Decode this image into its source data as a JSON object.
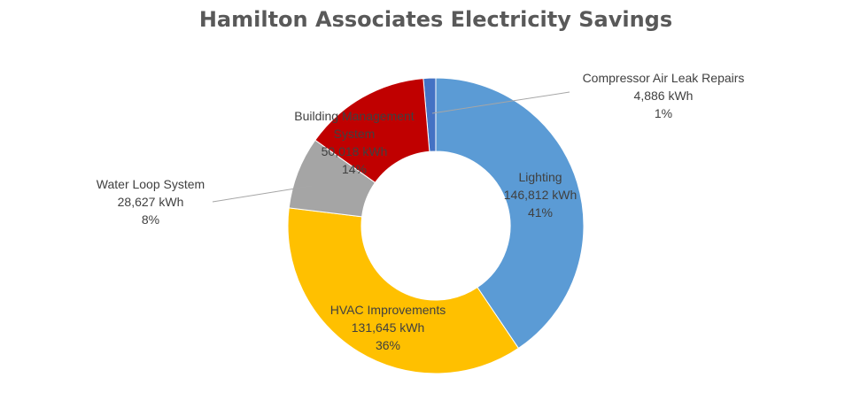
{
  "chart_data": {
    "type": "pie",
    "title": "Hamilton Associates Electricity Savings",
    "unit": "kWh",
    "slices": [
      {
        "label": "Compressor Air Leak Repairs",
        "value": 4886,
        "value_text": "4,886 kWh",
        "percent_text": "1%",
        "color": "#4472c4"
      },
      {
        "label": "Lighting",
        "value": 146812,
        "value_text": "146,812 kWh",
        "percent_text": "41%",
        "color": "#5b9bd5"
      },
      {
        "label": "HVAC Improvements",
        "value": 131645,
        "value_text": "131,645 kWh",
        "percent_text": "36%",
        "color": "#ffc000"
      },
      {
        "label": "Water Loop System",
        "value": 28627,
        "value_text": "28,627 kWh",
        "percent_text": "8%",
        "color": "#a5a5a5"
      },
      {
        "label": "Building Management System",
        "label_lines": [
          "Building Management",
          "System"
        ],
        "value": 50018,
        "value_text": "50,018 kWh",
        "percent_text": "14%",
        "color": "#c00000"
      }
    ],
    "legend": "none",
    "data_labels": "category, value, percent"
  }
}
